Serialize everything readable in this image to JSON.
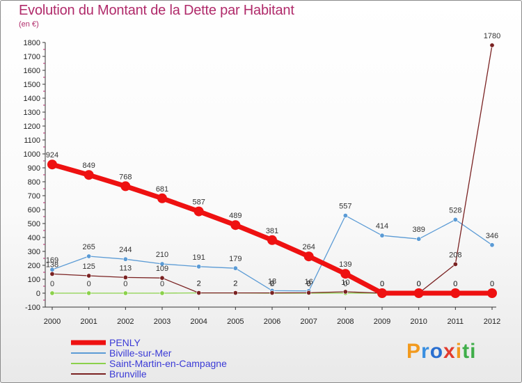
{
  "header": {
    "title": "Evolution du Montant de la Dette par Habitant",
    "subtitle": "(en €)"
  },
  "logo": {
    "text": "Proxiti",
    "colors": [
      "#f29a1e",
      "#3a8fe0",
      "#2a6fd0",
      "#e23b2e",
      "#f29a1e",
      "#3fae49",
      "#3fae49"
    ]
  },
  "colors": {
    "title": "#b02a6a",
    "legend_text": "#3a3ad6",
    "axis": "#222222"
  },
  "chart_data": {
    "type": "line",
    "title": "Evolution du Montant de la Dette par Habitant",
    "subtitle": "(en €)",
    "categories": [
      "2000",
      "2001",
      "2002",
      "2003",
      "2004",
      "2005",
      "2006",
      "2007",
      "2008",
      "2009",
      "2010",
      "2011",
      "2012"
    ],
    "ylim": [
      -100,
      1800
    ],
    "yticks": [
      -100,
      0,
      100,
      200,
      300,
      400,
      500,
      600,
      700,
      800,
      900,
      1000,
      1100,
      1200,
      1300,
      1400,
      1500,
      1600,
      1700,
      1800
    ],
    "grid": false,
    "legend_position": "bottom-left",
    "series": [
      {
        "name": "PENLY",
        "color": "#ee1111",
        "emphasis": true,
        "values": [
          924,
          849,
          768,
          681,
          587,
          489,
          381,
          264,
          139,
          0,
          0,
          0,
          0
        ],
        "labels": [
          "924",
          "849",
          "768",
          "681",
          "587",
          "489",
          "381",
          "264",
          "139",
          "0",
          "0",
          "0",
          "0"
        ]
      },
      {
        "name": "Biville-sur-Mer",
        "color": "#5b9bd5",
        "emphasis": false,
        "values": [
          169,
          265,
          244,
          210,
          191,
          179,
          18,
          16,
          557,
          414,
          389,
          528,
          346
        ],
        "labels": [
          "169",
          "265",
          "244",
          "210",
          "191",
          "179",
          "18",
          "16",
          "557",
          "414",
          "389",
          "528",
          "346"
        ]
      },
      {
        "name": "Saint-Martin-en-Campagne",
        "color": "#8bd14b",
        "emphasis": false,
        "values": [
          0,
          0,
          0,
          0,
          2,
          2,
          0,
          0,
          0,
          0,
          0,
          0,
          0
        ],
        "labels": [
          "0",
          "0",
          "0",
          "0",
          "2",
          "2",
          "0",
          "0",
          "0",
          "0",
          "0",
          "0",
          "0"
        ]
      },
      {
        "name": "Brunville",
        "color": "#7a2222",
        "emphasis": false,
        "values": [
          138,
          125,
          113,
          109,
          2,
          2,
          2,
          3,
          10,
          0,
          0,
          208,
          1780
        ],
        "labels": [
          "138",
          "125",
          "113",
          "109",
          "2",
          "2",
          "2",
          "3",
          "10",
          "0",
          "0",
          "208",
          "1780"
        ]
      }
    ]
  }
}
